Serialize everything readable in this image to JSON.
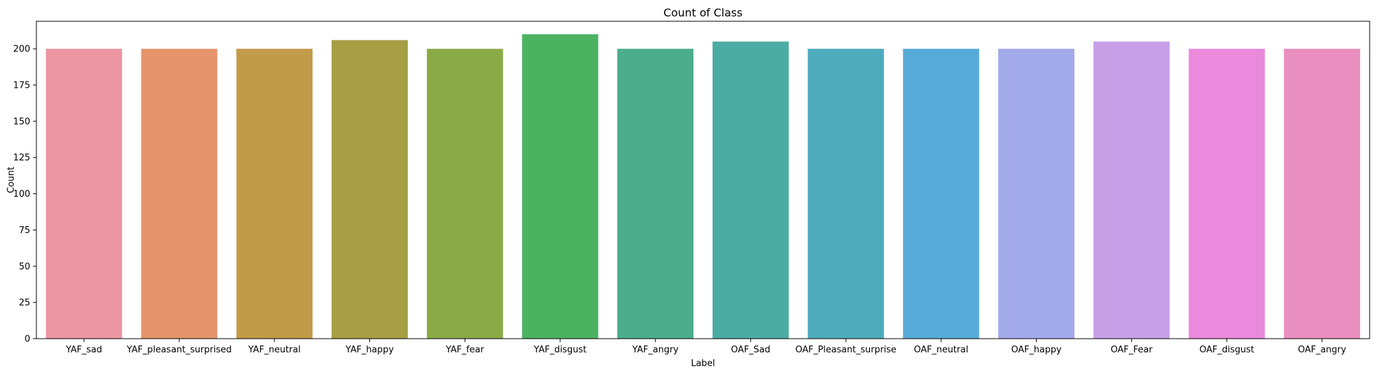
{
  "chart_data": {
    "type": "bar",
    "title": "Count of Class",
    "xlabel": "Label",
    "ylabel": "Count",
    "ylim": [
      0,
      219
    ],
    "yticks": [
      0,
      25,
      50,
      75,
      100,
      125,
      150,
      175,
      200
    ],
    "categories": [
      "YAF_sad",
      "YAF_pleasant_surprised",
      "YAF_neutral",
      "YAF_happy",
      "YAF_fear",
      "YAF_disgust",
      "YAF_angry",
      "OAF_Sad",
      "OAF_Pleasant_surprise",
      "OAF_neutral",
      "OAF_happy",
      "OAF_Fear",
      "OAF_disgust",
      "OAF_angry"
    ],
    "values": [
      200,
      200,
      200,
      206,
      200,
      210,
      200,
      205,
      200,
      200,
      200,
      205,
      200,
      200
    ],
    "colors": [
      "#ea96a3",
      "#e4956c",
      "#c29b4a",
      "#a69f45",
      "#8aaa48",
      "#4bb262",
      "#4bad8b",
      "#4caca4",
      "#4eabbc",
      "#57abd9",
      "#a2aae9",
      "#c69fe7",
      "#e98add",
      "#e98fc0"
    ],
    "grid": false,
    "legend": "none"
  }
}
